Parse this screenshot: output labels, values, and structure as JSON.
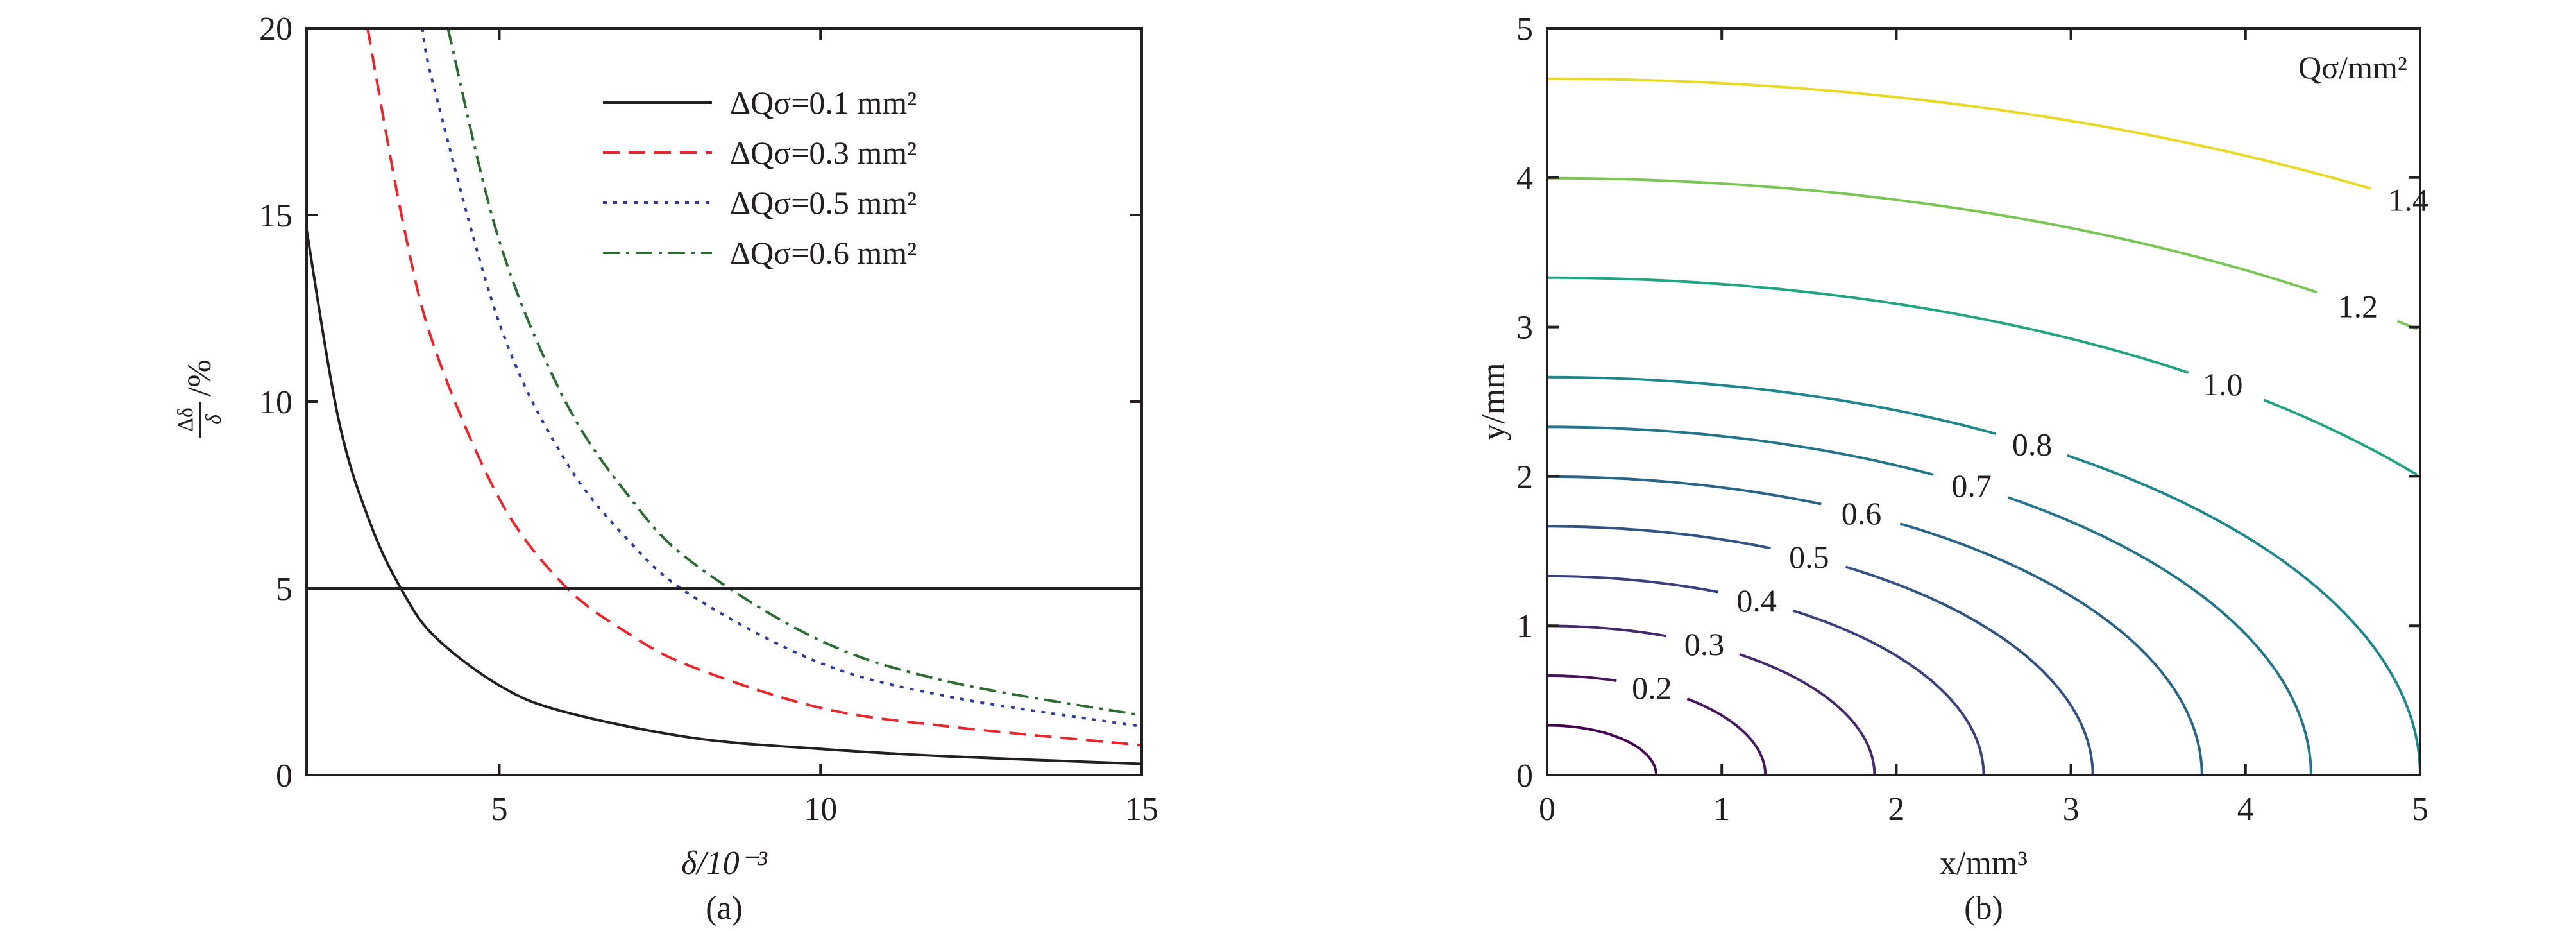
{
  "chart_data": [
    {
      "type": "line",
      "panel_label": "(a)",
      "xlabel": "δ/10⁻³",
      "ylabel": "Δδ/δ /%",
      "ylabel_num": "Δδ",
      "ylabel_den": "δ",
      "ylabel_unit": "/%",
      "xlim": [
        2,
        15
      ],
      "ylim": [
        0,
        20
      ],
      "xticks": [
        "5",
        "10",
        "15"
      ],
      "yticks": [
        "0",
        "5",
        "10",
        "15",
        "20"
      ],
      "hline": 5,
      "legend_position": "top-right",
      "series": [
        {
          "name": "ΔQσ=0.1 mm²",
          "dq": 0.1,
          "color": "#231f20",
          "dash": "solid",
          "points": [
            [
              2,
              14.6
            ],
            [
              2.5,
              9.5
            ],
            [
              3,
              6.7
            ],
            [
              3.5,
              4.9
            ],
            [
              4,
              3.7
            ],
            [
              5,
              2.4
            ],
            [
              6,
              1.7
            ],
            [
              8,
              1.0
            ],
            [
              10,
              0.7
            ],
            [
              12,
              0.5
            ],
            [
              15,
              0.3
            ]
          ]
        },
        {
          "name": "ΔQσ=0.3 mm²",
          "dq": 0.3,
          "color": "#e8262b",
          "dash": "dashed",
          "points": [
            [
              2.95,
              20
            ],
            [
              3.5,
              14.8
            ],
            [
              4,
              11.4
            ],
            [
              5,
              7.4
            ],
            [
              6,
              5.1
            ],
            [
              7,
              3.8
            ],
            [
              8,
              2.9
            ],
            [
              10,
              1.8
            ],
            [
              12,
              1.3
            ],
            [
              15,
              0.8
            ]
          ]
        },
        {
          "name": "ΔQσ=0.5 mm²",
          "dq": 0.5,
          "color": "#2e3c99",
          "dash": "dotted",
          "points": [
            [
              3.8,
              20
            ],
            [
              4,
              18.3
            ],
            [
              5,
              12.1
            ],
            [
              6,
              8.5
            ],
            [
              7,
              6.3
            ],
            [
              8,
              4.8
            ],
            [
              10,
              3.0
            ],
            [
              12,
              2.1
            ],
            [
              15,
              1.3
            ]
          ]
        },
        {
          "name": "ΔQσ=0.6 mm²",
          "dq": 0.6,
          "color": "#2d6a34",
          "dash": "dashdot",
          "points": [
            [
              4.2,
              20
            ],
            [
              5,
              14.3
            ],
            [
              6,
              10.1
            ],
            [
              7,
              7.5
            ],
            [
              8,
              5.7
            ],
            [
              10,
              3.6
            ],
            [
              12,
              2.5
            ],
            [
              15,
              1.6
            ]
          ]
        }
      ]
    },
    {
      "type": "contour",
      "panel_label": "(b)",
      "title": "Qσ/mm²",
      "xlabel": "x/mm³",
      "ylabel": "y/mm",
      "xlim": [
        0,
        5
      ],
      "ylim": [
        0,
        5
      ],
      "xticks": [
        "0",
        "1",
        "2",
        "3",
        "4",
        "5"
      ],
      "yticks": [
        "0",
        "1",
        "2",
        "3",
        "4",
        "5"
      ],
      "levels": [
        {
          "value": 0.1,
          "label": "",
          "color": "#440154"
        },
        {
          "value": 0.2,
          "label": "0.2",
          "color": "#46155f"
        },
        {
          "value": 0.3,
          "label": "0.3",
          "color": "#432a6f"
        },
        {
          "value": 0.4,
          "label": "0.4",
          "color": "#3b3f7d"
        },
        {
          "value": 0.5,
          "label": "0.5",
          "color": "#335284"
        },
        {
          "value": 0.6,
          "label": "0.6",
          "color": "#2b6489"
        },
        {
          "value": 0.7,
          "label": "0.7",
          "color": "#24758c"
        },
        {
          "value": 0.8,
          "label": "0.8",
          "color": "#1f868b"
        },
        {
          "value": 1.0,
          "label": "1.0",
          "color": "#22a482"
        },
        {
          "value": 1.2,
          "label": "1.2",
          "color": "#7ac555"
        },
        {
          "value": 1.4,
          "label": "1.4",
          "color": "#e8d928"
        }
      ]
    }
  ]
}
